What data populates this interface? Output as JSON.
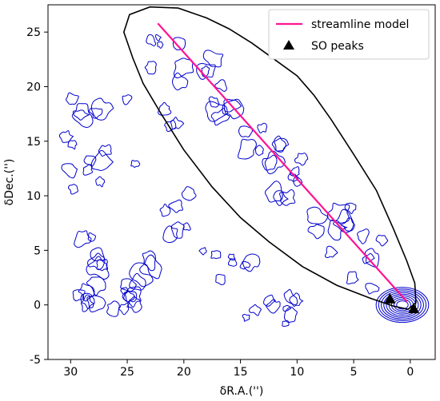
{
  "chart_data": {
    "type": "line",
    "title": "",
    "xlabel": "δR.A.('')",
    "ylabel": "δDec.('')",
    "xlim": [
      32,
      -2.2
    ],
    "ylim": [
      -5,
      27.5
    ],
    "x_ticks": [
      30,
      25,
      20,
      15,
      10,
      5,
      0
    ],
    "y_ticks": [
      -5,
      0,
      5,
      10,
      15,
      20,
      25
    ],
    "grid": false,
    "legend_position": "top-right",
    "colors": {
      "streamline": "#ff1493",
      "contour": "#0000cc",
      "boundary": "#000000",
      "peaks": "#000000"
    },
    "series": [
      {
        "name": "streamline model",
        "type": "line",
        "points": [
          [
            22.3,
            25.8
          ],
          [
            0.3,
            0.3
          ]
        ]
      },
      {
        "name": "SO peaks",
        "type": "scatter",
        "marker": "triangle",
        "points": [
          [
            1.8,
            0.5
          ],
          [
            -0.3,
            -0.4
          ]
        ]
      }
    ],
    "boundary_outline": [
      [
        24.5,
        22.6
      ],
      [
        25.3,
        25.0
      ],
      [
        24.8,
        26.6
      ],
      [
        23.0,
        27.3
      ],
      [
        20.5,
        27.2
      ],
      [
        18.0,
        26.3
      ],
      [
        16.0,
        25.3
      ],
      [
        14.0,
        24.0
      ],
      [
        12.0,
        22.5
      ],
      [
        10.0,
        21.0
      ],
      [
        8.5,
        19.2
      ],
      [
        7.0,
        17.0
      ],
      [
        5.0,
        13.8
      ],
      [
        3.0,
        10.5
      ],
      [
        1.5,
        7.0
      ],
      [
        0.3,
        4.0
      ],
      [
        -0.4,
        2.0
      ],
      [
        -0.5,
        0.2
      ],
      [
        0.2,
        -0.4
      ],
      [
        1.5,
        -0.1
      ],
      [
        3.5,
        0.6
      ],
      [
        6.5,
        1.8
      ],
      [
        9.5,
        3.5
      ],
      [
        12.5,
        5.8
      ],
      [
        15.0,
        8.0
      ],
      [
        17.5,
        10.8
      ],
      [
        20.0,
        14.2
      ],
      [
        22.0,
        17.5
      ],
      [
        23.6,
        20.3
      ],
      [
        24.5,
        22.6
      ]
    ]
  }
}
